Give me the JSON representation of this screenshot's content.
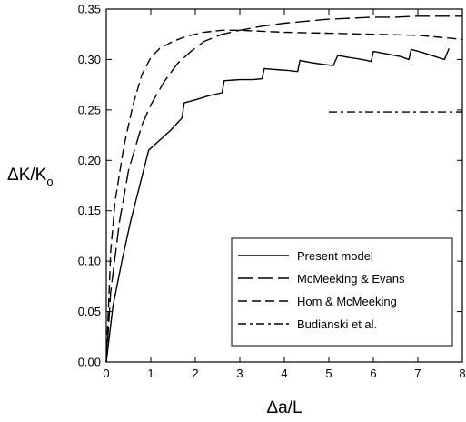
{
  "chart_data": {
    "type": "line",
    "xlabel": "Δa/L",
    "ylabel": "ΔK/K",
    "ylabel_sub": "o",
    "xlim": [
      0,
      8
    ],
    "ylim": [
      0,
      0.35
    ],
    "xticks": [
      "0",
      "1",
      "2",
      "3",
      "4",
      "5",
      "6",
      "7",
      "8"
    ],
    "yticks": [
      "0.00",
      "0.05",
      "0.10",
      "0.15",
      "0.20",
      "0.25",
      "0.30",
      "0.35"
    ],
    "legend_position": "bottom-right",
    "series": [
      {
        "name": "Present model",
        "style": "solid",
        "x": [
          0,
          0.15,
          0.35,
          0.55,
          0.75,
          0.95,
          1.2,
          1.45,
          1.7,
          1.75,
          2.0,
          2.3,
          2.6,
          2.65,
          3.0,
          3.3,
          3.5,
          3.55,
          3.8,
          4.1,
          4.3,
          4.35,
          4.6,
          4.9,
          5.1,
          5.2,
          5.45,
          5.75,
          5.95,
          6.0,
          6.25,
          6.6,
          6.8,
          6.85,
          7.1,
          7.45,
          7.6,
          7.7
        ],
        "y": [
          0,
          0.055,
          0.1,
          0.14,
          0.175,
          0.21,
          0.22,
          0.23,
          0.242,
          0.257,
          0.26,
          0.264,
          0.267,
          0.279,
          0.28,
          0.28,
          0.281,
          0.291,
          0.29,
          0.289,
          0.288,
          0.299,
          0.297,
          0.295,
          0.294,
          0.304,
          0.302,
          0.3,
          0.298,
          0.308,
          0.306,
          0.303,
          0.3,
          0.31,
          0.307,
          0.302,
          0.3,
          0.311
        ]
      },
      {
        "name": "McMeeking & Evans",
        "style": "long-dash",
        "x": [
          0,
          0.1,
          0.3,
          0.5,
          0.8,
          1.0,
          1.3,
          1.6,
          1.9,
          2.2,
          2.6,
          3.0,
          3.5,
          4.0,
          4.5,
          5.0,
          5.5,
          6.0,
          6.5,
          7.0,
          7.5,
          8.0
        ],
        "y": [
          0,
          0.07,
          0.14,
          0.19,
          0.235,
          0.255,
          0.278,
          0.296,
          0.308,
          0.318,
          0.325,
          0.329,
          0.333,
          0.336,
          0.338,
          0.34,
          0.341,
          0.342,
          0.342,
          0.343,
          0.343,
          0.343
        ]
      },
      {
        "name": "Hom & McMeeking",
        "style": "dash",
        "x": [
          0,
          0.1,
          0.2,
          0.4,
          0.6,
          0.8,
          1.0,
          1.2,
          1.5,
          1.8,
          2.2,
          2.6,
          3.0,
          3.5,
          4.0,
          5.0,
          6.0,
          7.0,
          7.5,
          8.0
        ],
        "y": [
          0,
          0.11,
          0.16,
          0.215,
          0.255,
          0.285,
          0.302,
          0.311,
          0.318,
          0.323,
          0.327,
          0.329,
          0.329,
          0.328,
          0.327,
          0.326,
          0.325,
          0.324,
          0.322,
          0.32
        ]
      },
      {
        "name": "Budianski et al.",
        "style": "dash-dot",
        "x": [
          5.0,
          8.0
        ],
        "y": [
          0.248,
          0.248
        ]
      }
    ]
  }
}
